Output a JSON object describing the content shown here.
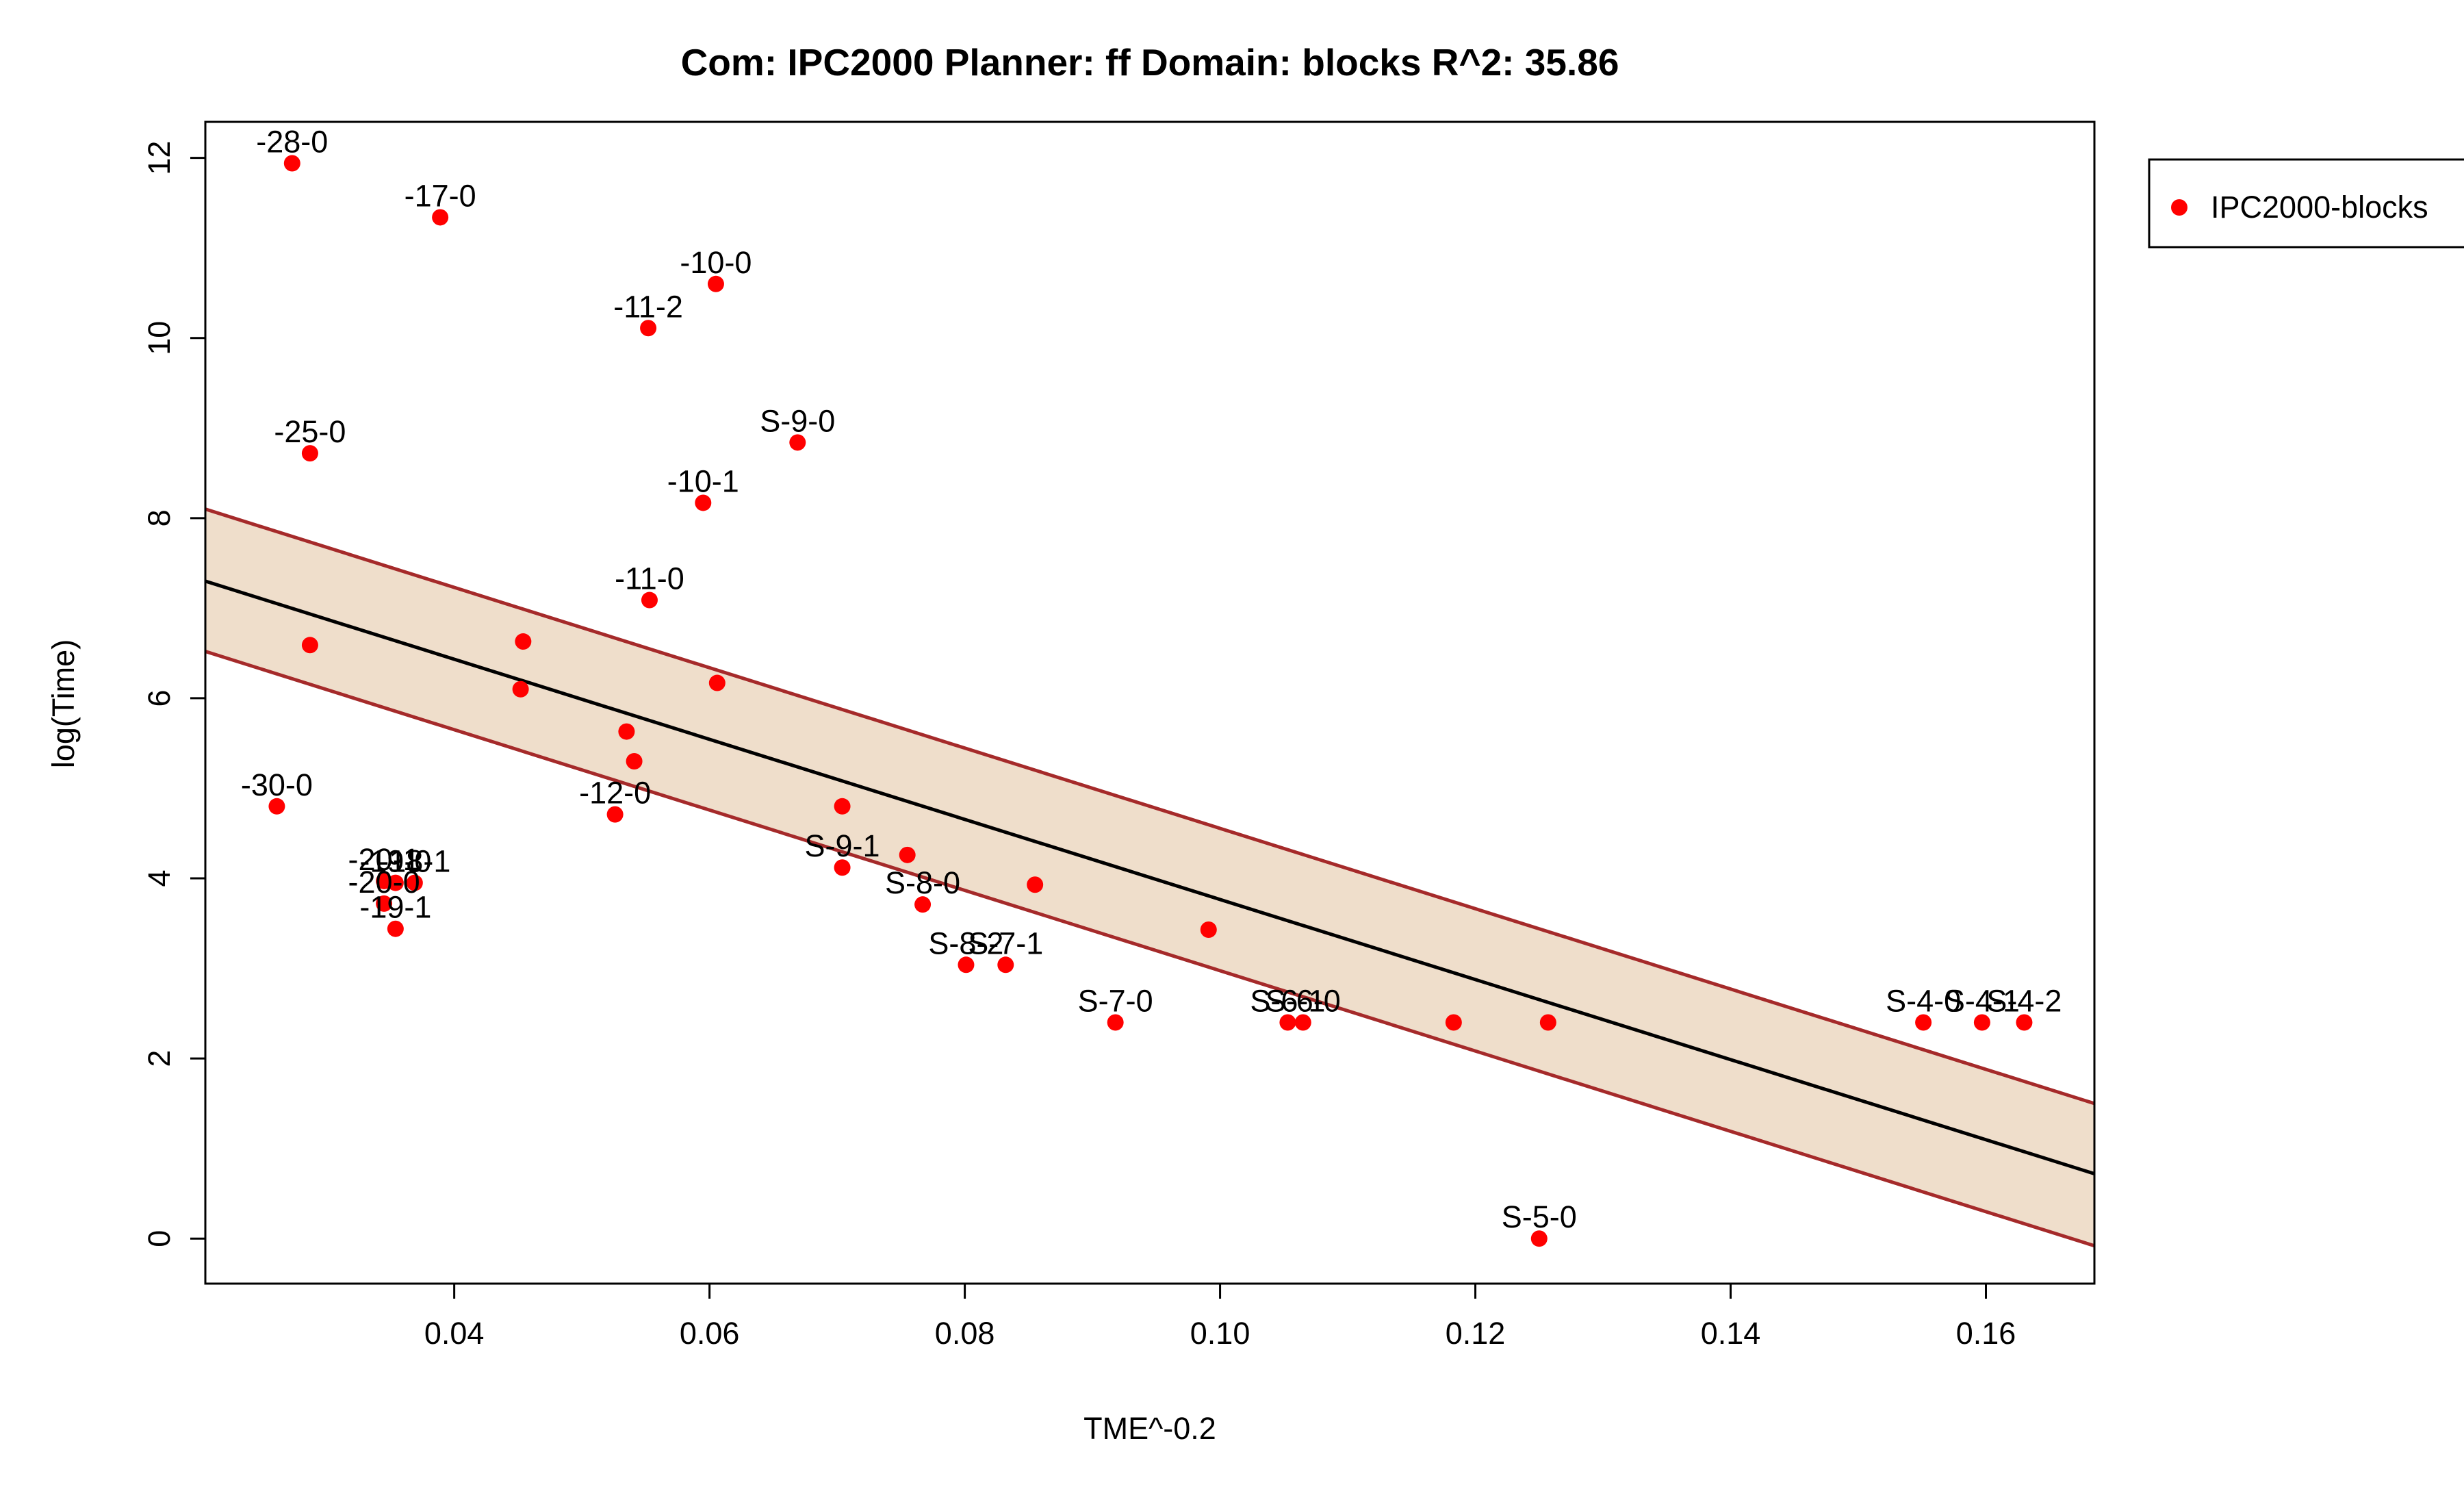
{
  "chart_data": {
    "type": "scatter",
    "title": "Com: IPC2000 Planner: ff Domain: blocks R^2: 35.86",
    "xlabel": "TME^-0.2",
    "ylabel": "log(Time)",
    "xlim": [
      0.0205,
      0.1685
    ],
    "ylim": [
      -0.5,
      12.4
    ],
    "x_ticks": [
      0.04,
      0.06,
      0.08,
      0.1,
      0.12,
      0.14,
      0.16
    ],
    "x_tick_labels": [
      "0.04",
      "0.06",
      "0.08",
      "0.10",
      "0.12",
      "0.14",
      "0.16"
    ],
    "y_ticks": [
      0,
      2,
      4,
      6,
      8,
      10,
      12
    ],
    "y_tick_labels": [
      "0",
      "2",
      "4",
      "6",
      "8",
      "10",
      "12"
    ],
    "grid": false,
    "legend": {
      "position": "outside-right",
      "entries": [
        {
          "label": "IPC2000-blocks",
          "color": "#ff0000"
        }
      ]
    },
    "colors": {
      "points": "#ff0000",
      "fit_line": "#000000",
      "band_edge": "#a52a2a",
      "band_fill": "#efdecb"
    },
    "fit": {
      "x": [
        0.0205,
        0.1685
      ],
      "y": [
        7.3,
        0.72
      ]
    },
    "band_upper": {
      "x": [
        0.0205,
        0.1685
      ],
      "y": [
        8.1,
        1.5
      ]
    },
    "band_lower": {
      "x": [
        0.0205,
        0.1685
      ],
      "y": [
        6.52,
        -0.08
      ]
    },
    "series": [
      {
        "name": "IPC2000-blocks",
        "points": [
          {
            "x": 0.0273,
            "y": 11.94,
            "label": "-28-0"
          },
          {
            "x": 0.0389,
            "y": 11.34,
            "label": "-17-0"
          },
          {
            "x": 0.0605,
            "y": 10.6,
            "label": "-10-0"
          },
          {
            "x": 0.0552,
            "y": 10.11,
            "label": "-11-2"
          },
          {
            "x": 0.0287,
            "y": 8.72,
            "label": "-25-0"
          },
          {
            "x": 0.0669,
            "y": 8.84,
            "label": "S-9-0"
          },
          {
            "x": 0.0595,
            "y": 8.17,
            "label": "-10-1"
          },
          {
            "x": 0.0553,
            "y": 7.09,
            "label": "-11-0"
          },
          {
            "x": 0.0287,
            "y": 6.59,
            "label": ""
          },
          {
            "x": 0.0454,
            "y": 6.63,
            "label": ""
          },
          {
            "x": 0.0452,
            "y": 6.1,
            "label": ""
          },
          {
            "x": 0.0606,
            "y": 6.17,
            "label": ""
          },
          {
            "x": 0.0535,
            "y": 5.63,
            "label": ""
          },
          {
            "x": 0.0541,
            "y": 5.3,
            "label": ""
          },
          {
            "x": 0.0261,
            "y": 4.8,
            "label": "-30-0"
          },
          {
            "x": 0.0526,
            "y": 4.71,
            "label": "-12-0"
          },
          {
            "x": 0.0704,
            "y": 4.8,
            "label": ""
          },
          {
            "x": 0.0704,
            "y": 4.12,
            "label": "S-9-1"
          },
          {
            "x": 0.0755,
            "y": 4.26,
            "label": ""
          },
          {
            "x": 0.0767,
            "y": 3.71,
            "label": "S-8-0"
          },
          {
            "x": 0.0855,
            "y": 3.93,
            "label": ""
          },
          {
            "x": 0.0345,
            "y": 3.97,
            "label": "-20-1"
          },
          {
            "x": 0.0354,
            "y": 3.95,
            "label": "-19-0"
          },
          {
            "x": 0.0369,
            "y": 3.95,
            "label": "-18-1"
          },
          {
            "x": 0.0345,
            "y": 3.72,
            "label": "-20-0"
          },
          {
            "x": 0.0354,
            "y": 3.44,
            "label": "-19-1"
          },
          {
            "x": 0.0801,
            "y": 3.04,
            "label": "S-8-2"
          },
          {
            "x": 0.0832,
            "y": 3.04,
            "label": "S-7-1"
          },
          {
            "x": 0.0991,
            "y": 3.43,
            "label": ""
          },
          {
            "x": 0.0918,
            "y": 2.4,
            "label": "S-7-0"
          },
          {
            "x": 0.1053,
            "y": 2.4,
            "label": "S-6-1"
          },
          {
            "x": 0.1065,
            "y": 2.4,
            "label": "S-6-0"
          },
          {
            "x": 0.1183,
            "y": 2.4,
            "label": ""
          },
          {
            "x": 0.1257,
            "y": 2.4,
            "label": ""
          },
          {
            "x": 0.1551,
            "y": 2.4,
            "label": "S-4-0"
          },
          {
            "x": 0.1597,
            "y": 2.4,
            "label": "S-4-1"
          },
          {
            "x": 0.163,
            "y": 2.4,
            "label": "S-4-2"
          },
          {
            "x": 0.125,
            "y": 0.0,
            "label": "S-5-0"
          }
        ]
      }
    ]
  }
}
